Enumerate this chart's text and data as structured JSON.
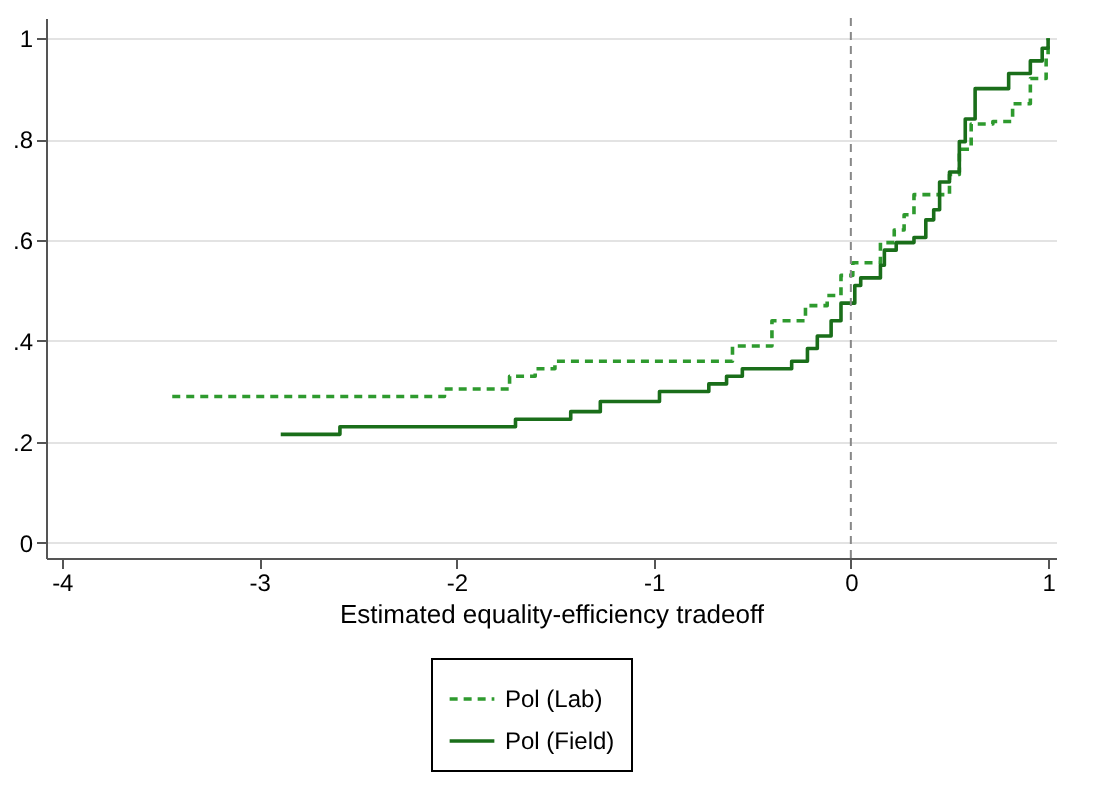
{
  "chart_data": {
    "type": "step",
    "xlabel": "Estimated equality-efficiency tradeoff",
    "xlim": [
      -4.08,
      1.04
    ],
    "ylim": [
      -0.03,
      1.04
    ],
    "xticks": [
      -4,
      -3,
      -2,
      -1,
      0,
      1
    ],
    "yticks": [
      0,
      {
        "value": 0.2,
        "label": ".2"
      },
      {
        "value": 0.4,
        "label": ".4"
      },
      {
        "value": 0.6,
        "label": ".6"
      },
      {
        "value": 0.8,
        "label": ".8"
      },
      1
    ],
    "grid": "y",
    "legend": "bottom",
    "ref_lines": [
      {
        "axis": "x",
        "value": 0,
        "color": "#888888",
        "line_style": "dashed"
      }
    ],
    "series": [
      {
        "name": "Pol (Lab)",
        "color": "#2e9a2e",
        "line_style": "dashed",
        "x": [
          -3.44,
          -2.06,
          -1.73,
          -1.6,
          -1.5,
          -0.6,
          -0.4,
          -0.23,
          -0.12,
          -0.05,
          0.01,
          0.15,
          0.22,
          0.27,
          0.32,
          0.5,
          0.55,
          0.61,
          0.72,
          0.82,
          0.91,
          0.99,
          1.0
        ],
        "values": [
          0.29,
          0.305,
          0.33,
          0.345,
          0.36,
          0.39,
          0.44,
          0.47,
          0.49,
          0.53,
          0.555,
          0.595,
          0.62,
          0.65,
          0.69,
          0.73,
          0.78,
          0.83,
          0.835,
          0.87,
          0.92,
          0.965,
          1.0
        ]
      },
      {
        "name": "Pol (Field)",
        "color": "#1a6e1a",
        "line_style": "solid",
        "x": [
          -2.89,
          -2.59,
          -1.7,
          -1.42,
          -1.27,
          -0.97,
          -0.72,
          -0.63,
          -0.55,
          -0.3,
          -0.22,
          -0.17,
          -0.1,
          -0.05,
          0.02,
          0.05,
          0.15,
          0.17,
          0.23,
          0.32,
          0.38,
          0.42,
          0.45,
          0.5,
          0.55,
          0.58,
          0.63,
          0.8,
          0.91,
          0.97,
          1.0
        ],
        "values": [
          0.215,
          0.23,
          0.245,
          0.26,
          0.28,
          0.3,
          0.315,
          0.33,
          0.345,
          0.36,
          0.385,
          0.41,
          0.44,
          0.475,
          0.51,
          0.525,
          0.55,
          0.58,
          0.595,
          0.605,
          0.64,
          0.66,
          0.715,
          0.735,
          0.795,
          0.84,
          0.9,
          0.93,
          0.955,
          0.98,
          1.0
        ]
      }
    ]
  }
}
